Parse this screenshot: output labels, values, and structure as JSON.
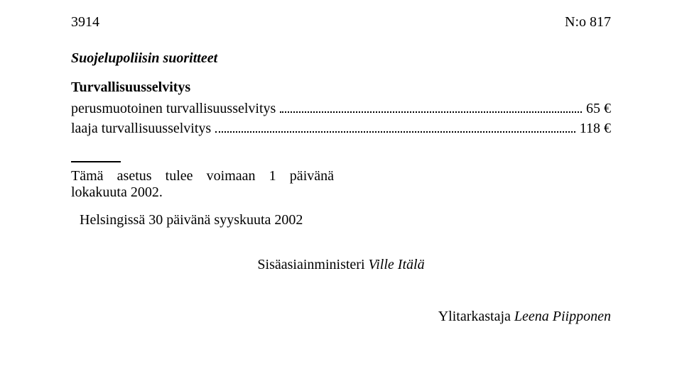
{
  "header": {
    "page_number": "3914",
    "doc_ref": "N:o 817"
  },
  "section": {
    "title": "Suojelupoliisin suoritteet"
  },
  "subsection": {
    "title": "Turvallisuusselvitys",
    "items": [
      {
        "label_prefix": "perusmuotoinen turvallisuusselvitys",
        "price": "65 €"
      },
      {
        "label_prefix": "laaja turvallisuusselvitys",
        "price": "118 €"
      }
    ]
  },
  "enactment": {
    "text": "Tämä asetus tulee voimaan 1 päivänä lokakuuta 2002."
  },
  "helsinki": {
    "text": "Helsingissä 30 päivänä syyskuuta 2002"
  },
  "minister": {
    "title": "Sisäasiainministeri",
    "name": "Ville Itälä"
  },
  "reviewer": {
    "title": "Ylitarkastaja",
    "name": "Leena Piipponen"
  }
}
